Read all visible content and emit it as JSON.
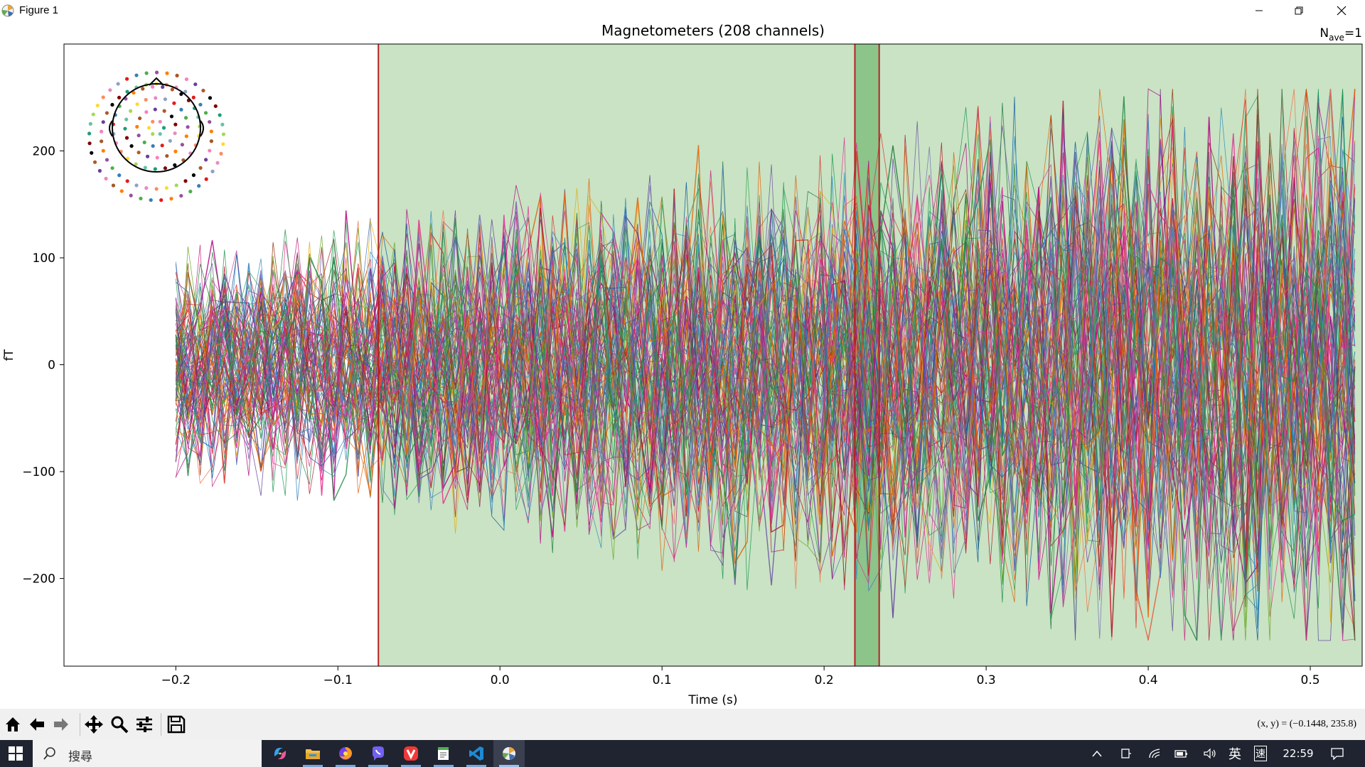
{
  "window": {
    "title": "Figure 1",
    "controls": [
      "minimize-icon",
      "restore-icon",
      "close-icon"
    ]
  },
  "plot": {
    "title": "Magnetometers (208 channels)",
    "nave_label": "N",
    "nave_sub": "ave",
    "nave_value": "=1",
    "ylabel": "fT",
    "xlabel": "Time (s)",
    "xticks": [
      "−0.2",
      "−0.1",
      "0.0",
      "0.1",
      "0.2",
      "0.3",
      "0.4",
      "0.5"
    ],
    "yticks": [
      "200",
      "100",
      "0",
      "−100",
      "−200"
    ],
    "highlight_color": "#c9e3c4",
    "selection_color": "#8cc48a",
    "marker_color": "#b22222"
  },
  "chart_data": {
    "type": "line",
    "title": "Magnetometers (208 channels)",
    "xlabel": "Time (s)",
    "ylabel": "fT",
    "xlim": [
      -0.269,
      0.532
    ],
    "ylim": [
      -282,
      300
    ],
    "x_ticks": [
      -0.2,
      -0.1,
      0.0,
      0.1,
      0.2,
      0.3,
      0.4,
      0.5
    ],
    "y_ticks": [
      -200,
      -100,
      0,
      100,
      200
    ],
    "channel_count": 208,
    "data_start": -0.2,
    "clip_value": 258,
    "shaded_span": [
      -0.075,
      0.532
    ],
    "selected_span": [
      0.219,
      0.234
    ],
    "markers": [
      -0.075,
      0.219,
      0.234
    ],
    "grid": false
  },
  "toolbar": {
    "buttons": [
      "home-icon",
      "back-icon",
      "forward-icon",
      "pan-icon",
      "zoom-icon",
      "configure-icon",
      "save-icon"
    ],
    "coords": "(x, y) = (−0.1448, 235.8)"
  },
  "taskbar": {
    "search_placeholder": "搜尋",
    "apps": [
      "copilot-icon",
      "file-explorer-icon",
      "firefox-icon",
      "viber-icon",
      "vivaldi-icon",
      "notepad-icon",
      "vscode-icon",
      "python-figure-icon"
    ],
    "ime_label": "英",
    "ime_mode": "速",
    "time": "22:59"
  }
}
